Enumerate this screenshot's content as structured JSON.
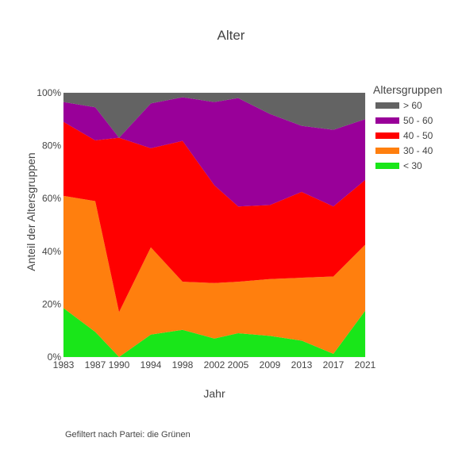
{
  "chart_data": {
    "type": "area",
    "title": "Alter",
    "xlabel": "Jahr",
    "ylabel": "Anteil der Altersgruppen",
    "x": [
      1983,
      1987,
      1990,
      1994,
      1998,
      2002,
      2005,
      2009,
      2013,
      2017,
      2021
    ],
    "x_ticks": [
      "1983",
      "1987",
      "1990",
      "1994",
      "1998",
      "2002",
      "2005",
      "2009",
      "2013",
      "2017",
      "2021"
    ],
    "ylim": [
      0,
      100
    ],
    "y_ticks": [
      "0%",
      "20%",
      "40%",
      "60%",
      "80%",
      "100%"
    ],
    "stacked": true,
    "grid": true,
    "legend_title": "Altersgruppen",
    "legend_position": "right",
    "legend_order": [
      "> 60",
      "50 - 60",
      "40 - 50",
      "30 - 40",
      "< 30"
    ],
    "series": [
      {
        "name": "< 30",
        "color": "#19e619",
        "values": [
          18.5,
          9.5,
          0.0,
          8.5,
          10.3,
          7.0,
          9.0,
          8.0,
          6.2,
          1.2,
          17.5
        ]
      },
      {
        "name": "30 - 40",
        "color": "#ff7f0e",
        "values": [
          42.5,
          49.5,
          17.0,
          33.0,
          18.2,
          21.0,
          19.5,
          21.5,
          23.8,
          29.3,
          25.0
        ]
      },
      {
        "name": "40 - 50",
        "color": "#ff0000",
        "values": [
          28.0,
          23.0,
          66.0,
          37.5,
          53.3,
          37.0,
          28.5,
          28.0,
          32.5,
          26.5,
          24.5
        ]
      },
      {
        "name": "50 - 60",
        "color": "#990099",
        "values": [
          7.5,
          12.5,
          0.0,
          17.0,
          16.5,
          31.5,
          41.0,
          34.5,
          25.0,
          29.0,
          23.0
        ]
      },
      {
        "name": "> 60",
        "color": "#636363",
        "values": [
          3.5,
          5.5,
          17.0,
          4.0,
          1.7,
          3.5,
          2.0,
          8.0,
          12.5,
          14.0,
          10.0
        ]
      }
    ]
  },
  "note": "Gefiltert nach Partei: die Grünen"
}
